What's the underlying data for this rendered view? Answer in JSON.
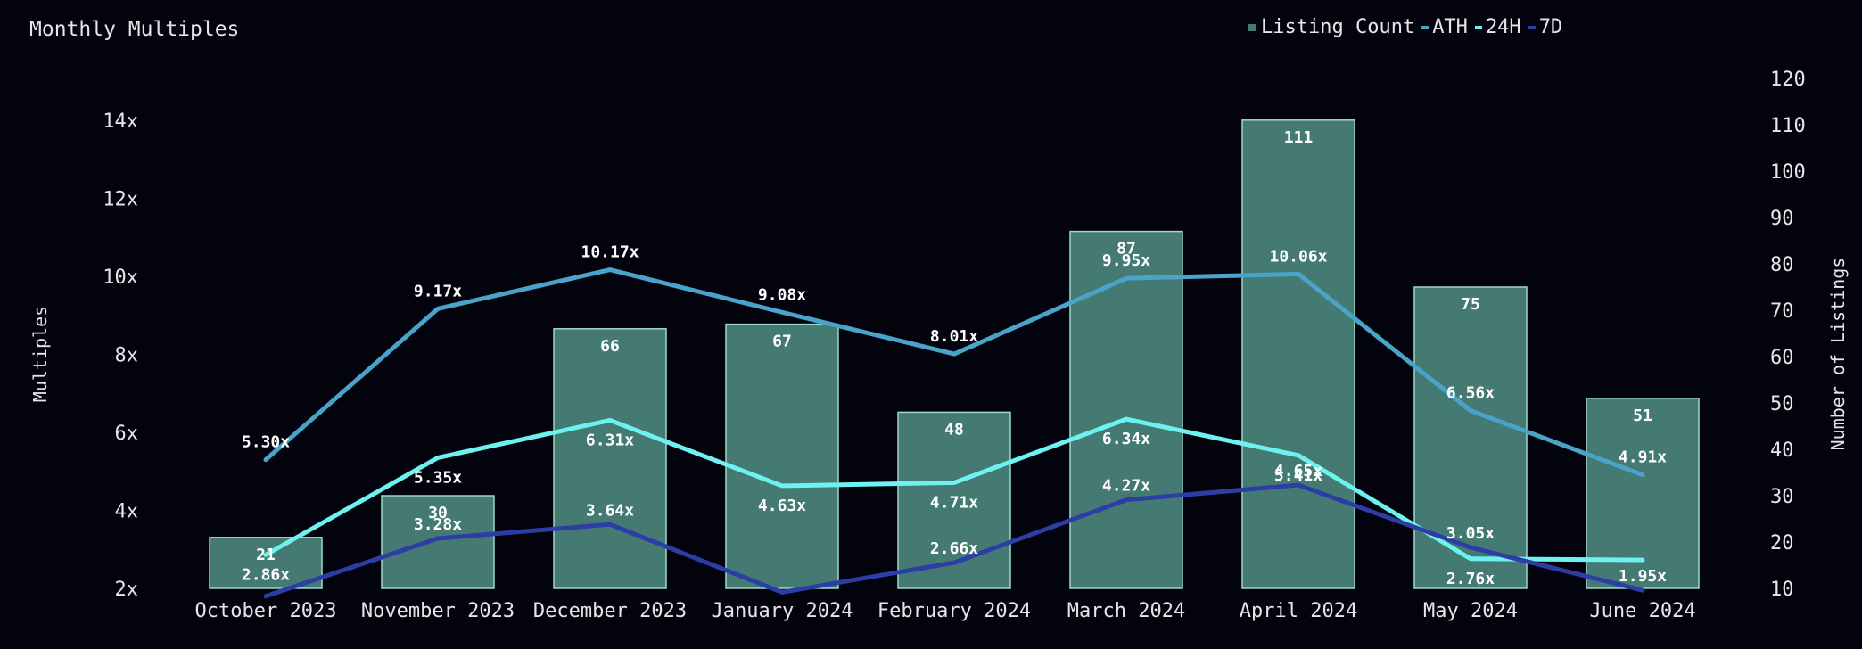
{
  "chart_data": {
    "type": "bar",
    "title": "Monthly Multiples",
    "categories": [
      "October 2023",
      "November 2023",
      "December 2023",
      "January 2024",
      "February 2024",
      "March 2024",
      "April 2024",
      "May 2024",
      "June 2024"
    ],
    "bar_series": {
      "name": "Listing Count",
      "values": [
        21,
        30,
        66,
        67,
        48,
        87,
        111,
        75,
        51
      ],
      "color": "#457a72"
    },
    "line_series": [
      {
        "name": "ATH",
        "values": [
          5.3,
          9.17,
          10.17,
          9.08,
          8.01,
          9.95,
          10.06,
          6.56,
          4.91
        ],
        "color": "#4aa3c9"
      },
      {
        "name": "24H",
        "values": [
          2.86,
          5.35,
          6.31,
          4.63,
          4.71,
          6.34,
          5.41,
          2.76,
          2.73
        ],
        "color": "#6ef2f0"
      },
      {
        "name": "7D",
        "values": [
          1.8,
          3.28,
          3.64,
          1.9,
          2.66,
          4.27,
          4.65,
          3.05,
          1.95
        ],
        "color": "#2c3ea6"
      }
    ],
    "line_labels": [
      {
        "series": "ATH",
        "labels": [
          "5.30x",
          "9.17x",
          "10.17x",
          "9.08x",
          "8.01x",
          "9.95x",
          "10.06x",
          "6.56x",
          "4.91x"
        ]
      },
      {
        "series": "24H",
        "labels": [
          "2.86x",
          "5.35x",
          "6.31x",
          "4.63x",
          "4.71x",
          "6.34x",
          "5.41x",
          "2.76x",
          ""
        ]
      },
      {
        "series": "7D",
        "labels": [
          "",
          "3.28x",
          "3.64x",
          "",
          "2.66x",
          "4.27x",
          "4.65x",
          "3.05x",
          "1.95x"
        ]
      }
    ],
    "y_left": {
      "label": "Multiples",
      "range": [
        2,
        14
      ],
      "ticks": [
        "2x",
        "4x",
        "6x",
        "8x",
        "10x",
        "12x",
        "14x"
      ]
    },
    "y_right": {
      "label": "Number of Listings",
      "range": [
        10,
        120
      ],
      "ticks": [
        "10",
        "20",
        "30",
        "40",
        "50",
        "60",
        "70",
        "80",
        "90",
        "100",
        "110",
        "120"
      ]
    },
    "legend_position": "top-right",
    "grid": false
  },
  "legend": {
    "items": [
      {
        "label": "Listing Count",
        "color": "#457a72",
        "kind": "square"
      },
      {
        "label": "ATH",
        "color": "#4aa3c9",
        "kind": "line"
      },
      {
        "label": "24H",
        "color": "#6ef2f0",
        "kind": "line"
      },
      {
        "label": "7D",
        "color": "#2c3ea6",
        "kind": "line"
      }
    ]
  }
}
